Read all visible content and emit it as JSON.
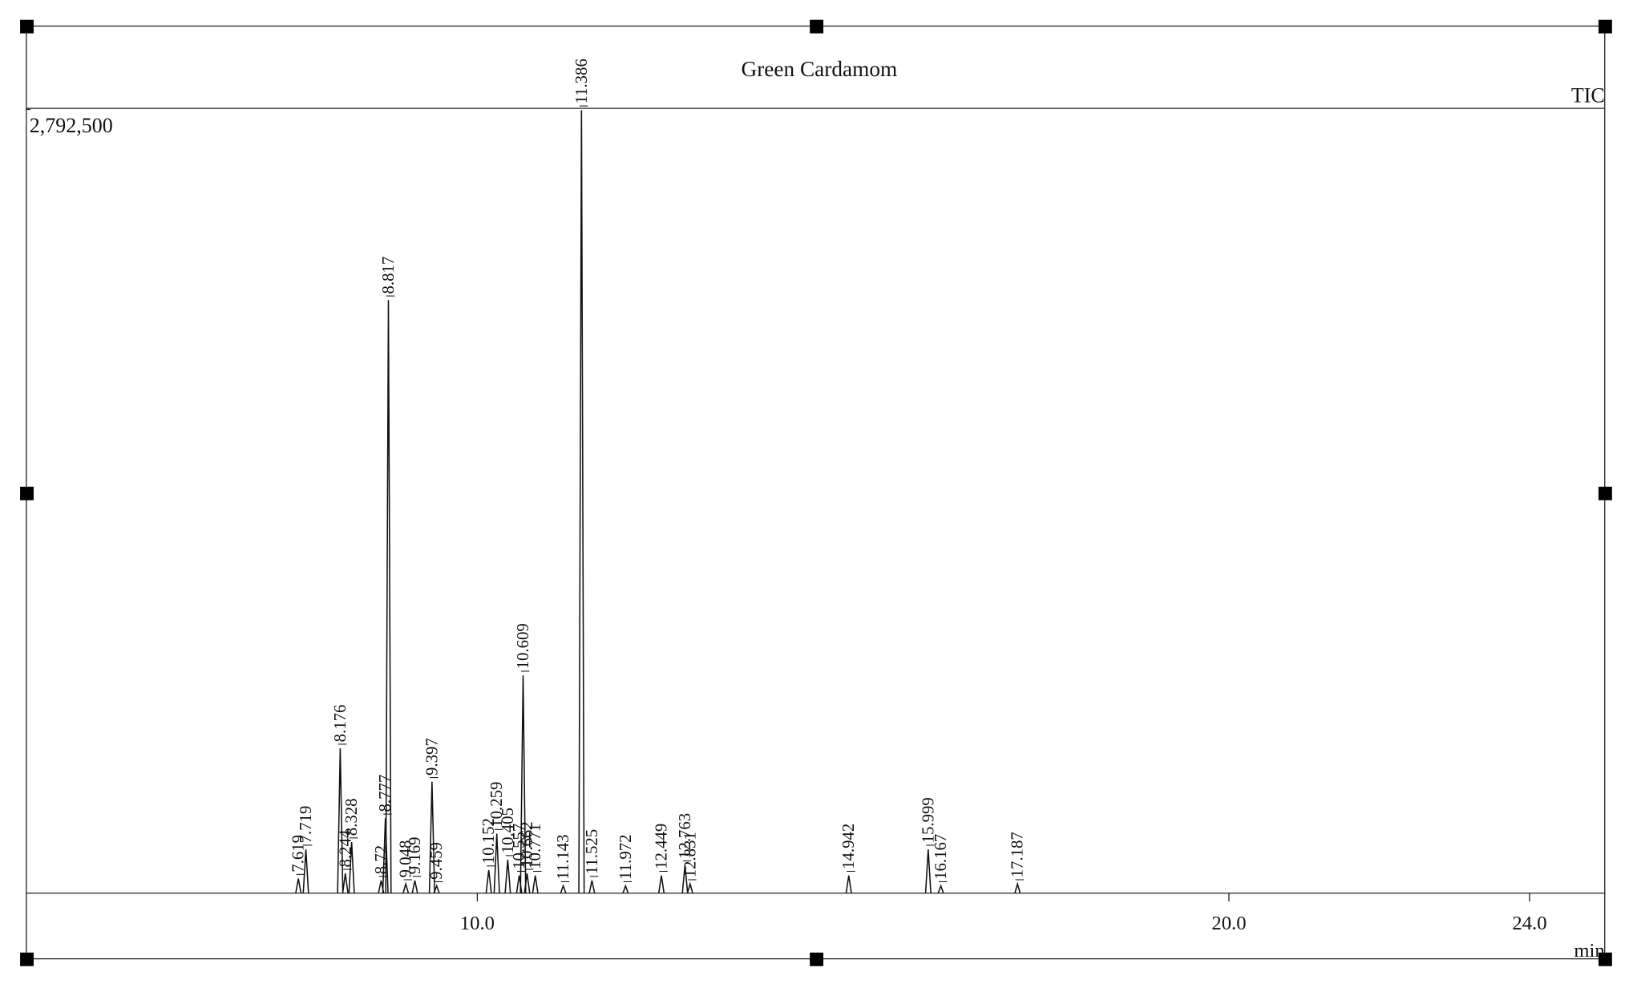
{
  "chart_data": {
    "type": "chromatogram",
    "title": "Green Cardamom",
    "trace_label": "TIC",
    "x_label": "min",
    "color": "#111111",
    "xlim": [
      4,
      25
    ],
    "xticks": [
      {
        "value": 10,
        "label": "10.0"
      },
      {
        "value": 20,
        "label": "20.0"
      },
      {
        "value": 24,
        "label": "24.0"
      }
    ],
    "ylim": [
      0,
      2792500
    ],
    "yticks": [
      {
        "value": 2792500,
        "label": "2,792,500"
      }
    ],
    "x": [
      7.619,
      7.719,
      8.176,
      8.244,
      8.328,
      8.72,
      8.777,
      8.817,
      9.048,
      9.169,
      9.397,
      9.459,
      10.152,
      10.259,
      10.405,
      10.557,
      10.609,
      10.662,
      10.771,
      11.143,
      11.386,
      11.525,
      11.972,
      12.449,
      12.763,
      12.831,
      14.942,
      15.999,
      16.167,
      17.187
    ],
    "values": [
      52000,
      156000,
      516000,
      70000,
      182000,
      45000,
      267000,
      2113000,
      33000,
      45000,
      397000,
      26000,
      82000,
      212000,
      119000,
      63000,
      776000,
      70000,
      63000,
      26000,
      2790000,
      45000,
      26000,
      63000,
      100000,
      33000,
      63000,
      156000,
      26000,
      33000
    ]
  }
}
